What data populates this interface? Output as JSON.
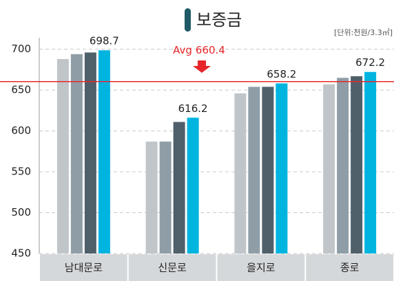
{
  "chart_data": {
    "type": "bar",
    "title": "보증금",
    "unit": "[단위:천원/3.3㎡]",
    "categories": [
      "남대문로",
      "신문로",
      "을지로",
      "종로"
    ],
    "series": [
      {
        "color": "#c0c5c9",
        "values": [
          688,
          587,
          646,
          657
        ]
      },
      {
        "color": "#8f9ea6",
        "values": [
          694,
          587,
          654,
          665
        ]
      },
      {
        "color": "#4f606b",
        "values": [
          696,
          611,
          654,
          667
        ]
      },
      {
        "color": "#00b4e0",
        "values": [
          698.7,
          616.2,
          658.2,
          672.2
        ],
        "show_labels": true
      }
    ],
    "average": {
      "label": "Avg",
      "value": 660.4,
      "color": "#e8262a"
    },
    "ylim": [
      450,
      714
    ],
    "yticks": [
      450,
      500,
      550,
      600,
      650,
      700
    ],
    "grid": true
  }
}
